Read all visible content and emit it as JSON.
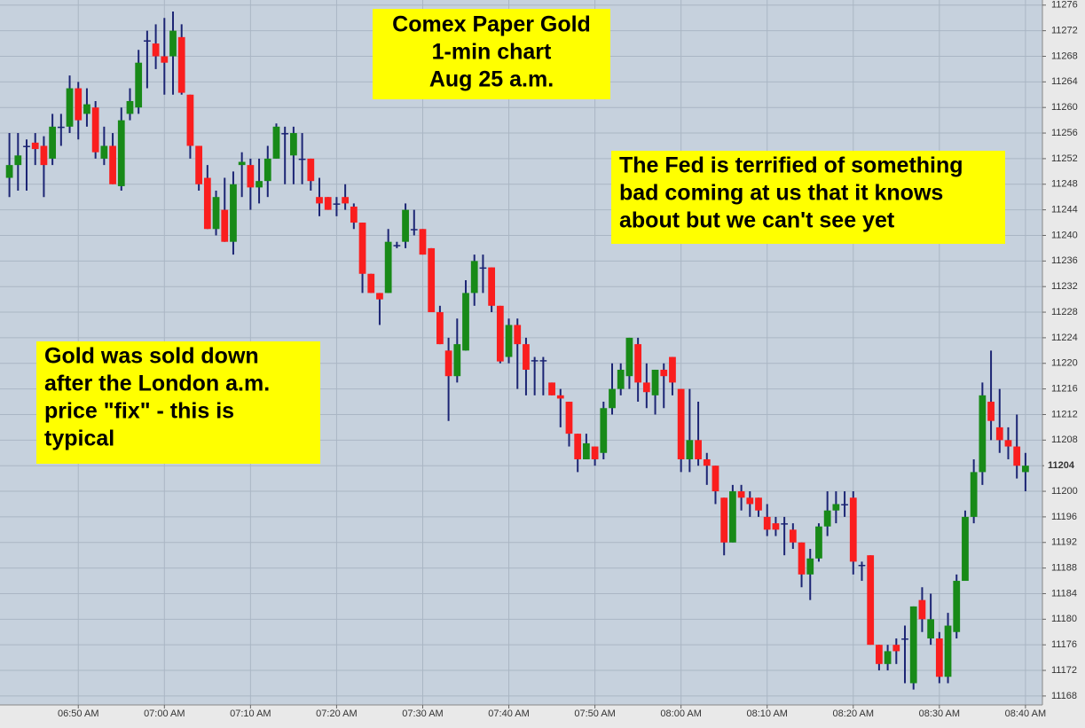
{
  "chart_data": {
    "type": "candlestick",
    "categories": [
      null,
      null,
      null,
      null,
      null,
      null,
      null,
      null,
      "06:50 AM",
      null,
      null,
      null,
      null,
      null,
      null,
      null,
      null,
      null,
      "07:00 AM",
      null,
      null,
      null,
      null,
      null,
      null,
      null,
      null,
      null,
      "07:10 AM",
      null,
      null,
      null,
      null,
      null,
      null,
      null,
      null,
      null,
      "07:20 AM",
      null,
      null,
      null,
      null,
      null,
      null,
      null,
      null,
      null,
      "07:30 AM",
      null,
      null,
      null,
      null,
      null,
      null,
      null,
      null,
      null,
      "07:40 AM",
      null,
      null,
      null,
      null,
      null,
      null,
      null,
      null,
      null,
      "07:50 AM",
      null,
      null,
      null,
      null,
      null,
      null,
      null,
      null,
      null,
      "08:00 AM",
      null,
      null,
      null,
      null,
      null,
      null,
      null,
      null,
      null,
      "08:10 AM",
      null,
      null,
      null,
      null,
      null,
      null,
      null,
      null,
      null,
      "08:20 AM",
      null,
      null,
      null,
      null,
      null,
      null,
      null,
      null,
      null,
      "08:30 AM",
      null,
      null,
      null,
      null,
      null,
      null,
      null,
      null,
      null,
      "08:40 AM"
    ],
    "open": [
      11249,
      11251,
      11254,
      11254.5,
      11254,
      11252,
      11257,
      11257,
      11263,
      11259,
      11260,
      11252,
      11254,
      11247.7,
      11259,
      11260,
      11270.5,
      11270,
      11268,
      11268,
      11271,
      11262,
      11254,
      11249,
      11241,
      11244,
      11239,
      11251,
      11251,
      11247.5,
      11248.5,
      11252,
      11256,
      11252.5,
      11252,
      11252,
      11246,
      11246,
      11245,
      11246,
      11244.5,
      11242,
      11234,
      11231,
      11231,
      11238.5,
      11239,
      11241,
      11241,
      11238,
      11228,
      11222,
      11218,
      11222,
      11231,
      11235,
      11235,
      11229,
      11221,
      11226,
      11223,
      11220.5,
      11220.5,
      11217,
      11215,
      11214,
      11209,
      11205,
      11207,
      11206,
      11213,
      11216,
      11218,
      11223,
      11217,
      11215,
      11219,
      11221,
      11216,
      11205,
      11208,
      11205,
      11204,
      11199,
      11192,
      11200,
      11199,
      11199,
      11196,
      11195,
      11195,
      11194,
      11192,
      11187,
      11189.5,
      11194.5,
      11197,
      11198,
      11199,
      11188.5,
      11190,
      11176,
      11173,
      11176,
      11177,
      11170,
      11183,
      11177,
      11177,
      11171,
      11178,
      11186,
      11196,
      11203,
      11214,
      11210,
      11208,
      11207,
      11203
    ],
    "high": [
      11256,
      11256,
      11255,
      11256,
      11255.5,
      11259,
      11259,
      11265,
      11264,
      11263,
      11261,
      11257,
      11256,
      11260,
      11263,
      11269,
      11272,
      11273,
      11274,
      11275,
      11273,
      11262,
      11254,
      11251,
      11247,
      11249,
      11250,
      11253,
      11252,
      11252,
      11254,
      11257.5,
      11257,
      11257,
      11256,
      11252,
      11249,
      11246,
      11246,
      11248,
      11245,
      11242,
      11234,
      11231,
      11241,
      11239,
      11245,
      11244,
      11241,
      11238,
      11229,
      11224,
      11227,
      11233,
      11237,
      11237,
      11235,
      11229,
      11227,
      11227,
      11224,
      11221,
      11221,
      11217,
      11216,
      11214,
      11209,
      11209,
      11207,
      11214,
      11220,
      11220,
      11224,
      11224,
      11220,
      11219,
      11220,
      11221,
      11216,
      11216,
      11214,
      11206,
      11204,
      11199,
      11201,
      11201,
      11200,
      11199,
      11198,
      11196,
      11196,
      11195,
      11192,
      11191,
      11195,
      11200,
      11200,
      11200,
      11200,
      11189,
      11190,
      11176,
      11176,
      11177,
      11179,
      11182,
      11185,
      11184,
      11178,
      11181,
      11187,
      11197,
      11205,
      11217,
      11222,
      11216,
      11210,
      11212,
      11206
    ],
    "low": [
      11246,
      11247,
      11247,
      11251,
      11246,
      11251,
      11254,
      11256,
      11255,
      11257,
      11252,
      11251,
      11248,
      11247,
      11258,
      11259,
      11263,
      11266,
      11262,
      11262,
      11262,
      11252,
      11247,
      11241,
      11240,
      11239,
      11237,
      11246,
      11244,
      11245,
      11246,
      11252,
      11248,
      11248,
      11248,
      11247,
      11243,
      11244,
      11243,
      11244,
      11241,
      11231,
      11231,
      11226,
      11231,
      11238,
      11238,
      11240,
      11237,
      11228,
      11223,
      11211,
      11217,
      11222,
      11229,
      11231,
      11228,
      11220,
      11220,
      11216,
      11215,
      11215,
      11215,
      11215,
      11210,
      11207,
      11203,
      11205,
      11204,
      11205,
      11212,
      11215,
      11216,
      11214,
      11213,
      11212,
      11213,
      11215,
      11203,
      11203,
      11204,
      11201,
      11198,
      11190,
      11192,
      11197,
      11196,
      11196,
      11193,
      11193,
      11190,
      11191,
      11185,
      11183,
      11189,
      11193,
      11195,
      11196,
      11187,
      11186,
      11176,
      11172,
      11172,
      11173,
      11170,
      11169,
      11178,
      11176,
      11170,
      11170,
      11177,
      11186,
      11195,
      11201,
      11208,
      11206,
      11205,
      11202,
      11200
    ],
    "close": [
      11251,
      11252.5,
      11254,
      11253.5,
      11251,
      11257,
      11257,
      11263,
      11258,
      11260.5,
      11253,
      11254,
      11248,
      11258,
      11261,
      11267,
      11270.5,
      11268,
      11267,
      11272,
      11262.3,
      11254,
      11248,
      11241,
      11246,
      11239,
      11248,
      11251.5,
      11247.5,
      11248.5,
      11252,
      11257,
      11256,
      11256,
      11252,
      11248.5,
      11245,
      11244,
      11245,
      11245,
      11242,
      11234,
      11231,
      11230,
      11239,
      11238.5,
      11244,
      11241,
      11237,
      11228,
      11223,
      11218,
      11223,
      11231,
      11236,
      11235,
      11229,
      11220.3,
      11226,
      11223,
      11219,
      11220.5,
      11220.5,
      11215,
      11214.5,
      11209,
      11205,
      11207.5,
      11205,
      11213,
      11216,
      11219,
      11224,
      11217,
      11215.5,
      11219,
      11218,
      11217,
      11205,
      11208,
      11205,
      11204,
      11200,
      11192,
      11200,
      11199,
      11198,
      11197,
      11194,
      11194,
      11195,
      11192,
      11187,
      11189.5,
      11194.5,
      11197,
      11198,
      11198,
      11189,
      11188.5,
      11176,
      11173,
      11175,
      11175,
      11177,
      11182,
      11180,
      11180,
      11171,
      11179,
      11186,
      11196,
      11203,
      11215,
      11211,
      11208,
      11207,
      11204,
      11204
    ],
    "up_color": "#188a18",
    "down_color": "#fa1e1e",
    "wick_color": "#1c2574",
    "ylim": [
      11166.6,
      11276.8
    ],
    "yticks": [
      11168,
      11172,
      11176,
      11180,
      11184,
      11188,
      11192,
      11196,
      11200,
      11204,
      11208,
      11212,
      11216,
      11220,
      11224,
      11228,
      11232,
      11236,
      11240,
      11244,
      11248,
      11252,
      11256,
      11260,
      11264,
      11268,
      11272,
      11276
    ],
    "y_axis_side": "right",
    "grid": true,
    "last_price": 11204,
    "annotations": [
      {
        "lines": [
          "Comex Paper Gold",
          "1-min chart",
          "Aug 25 a.m."
        ]
      },
      {
        "lines": [
          "The Fed is terrified of something",
          "bad coming at us that it knows",
          "about but we can't see yet"
        ]
      },
      {
        "lines": [
          "Gold was sold down",
          "after the London a.m.",
          "price \"fix\" - this is",
          "typical"
        ]
      }
    ]
  }
}
